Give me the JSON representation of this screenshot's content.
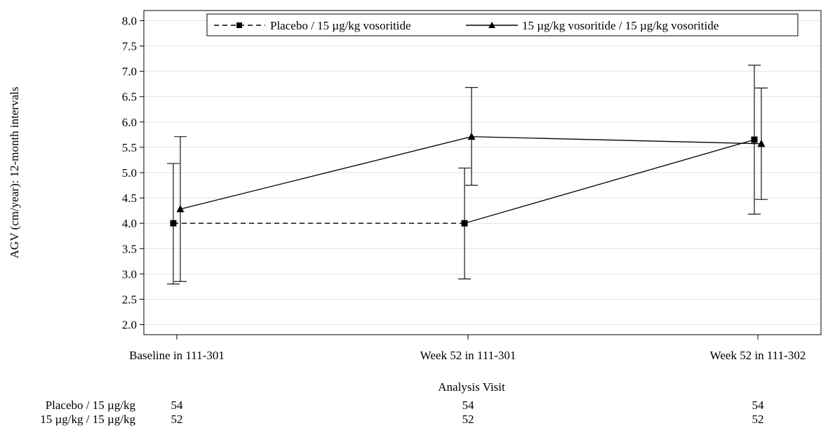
{
  "chart_data": {
    "type": "line",
    "categories": [
      "Baseline in 111-301",
      "Week 52 in 111-301",
      "Week 52 in 111-302"
    ],
    "ylabel": "AGV (cm/year): 12-month intervals",
    "xlabel": "Analysis Visit",
    "ylim": [
      1.8,
      8.2
    ],
    "yticks": [
      "2.0",
      "2.5",
      "3.0",
      "3.5",
      "4.0",
      "4.5",
      "5.0",
      "5.5",
      "6.0",
      "6.5",
      "7.0",
      "7.5",
      "8.0"
    ],
    "grid": true,
    "legend_position": "top-right",
    "series": [
      {
        "name": "Placebo / 15 µg/kg vosoritide",
        "marker": "square",
        "line_style": "dashed-then-solid",
        "values": [
          4.0,
          4.0,
          5.65
        ],
        "lower": [
          2.8,
          2.9,
          4.18
        ],
        "upper": [
          5.18,
          5.09,
          7.12
        ]
      },
      {
        "name": "15 µg/kg vosoritide / 15 µg/kg vosoritide",
        "marker": "triangle",
        "line_style": "solid",
        "values": [
          4.28,
          5.71,
          5.57
        ],
        "lower": [
          2.85,
          4.75,
          4.47
        ],
        "upper": [
          5.71,
          6.68,
          6.67
        ]
      }
    ],
    "n_table": {
      "rows": [
        {
          "label": "Placebo / 15 µg/kg",
          "counts": [
            "54",
            "54",
            "54"
          ]
        },
        {
          "label": "15 µg/kg / 15 µg/kg",
          "counts": [
            "52",
            "52",
            "52"
          ]
        }
      ]
    }
  }
}
